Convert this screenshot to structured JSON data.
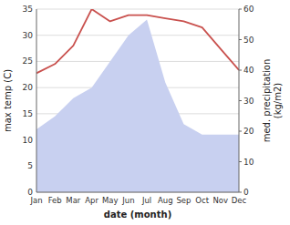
{
  "chart_data": {
    "type": "line",
    "categories": [
      "Jan",
      "Feb",
      "Mar",
      "Apr",
      "May",
      "Jun",
      "Jul",
      "Aug",
      "Sep",
      "Oct",
      "Nov",
      "Dec"
    ],
    "series": [
      {
        "type": "area",
        "color": "#c8d0f0",
        "values": [
          12,
          14.5,
          18,
          20,
          25,
          30,
          33,
          21,
          13,
          11,
          11,
          11
        ]
      },
      {
        "type": "line",
        "color": "#c9514e",
        "axis": "y2",
        "values": [
          39,
          42,
          48,
          60,
          56,
          58,
          58,
          57,
          56,
          54,
          47,
          40
        ]
      }
    ],
    "ylim": [
      0,
      35
    ],
    "yticks": [
      0,
      5,
      10,
      15,
      20,
      25,
      30,
      35
    ],
    "y2lim": [
      0,
      60
    ],
    "y2ticks": [
      0,
      10,
      20,
      30,
      40,
      50,
      60
    ],
    "xlabel": "date (month)",
    "ylabel": "max temp (C)",
    "y2label": "med. precipitation\n(kg/m2)",
    "grid": true
  }
}
